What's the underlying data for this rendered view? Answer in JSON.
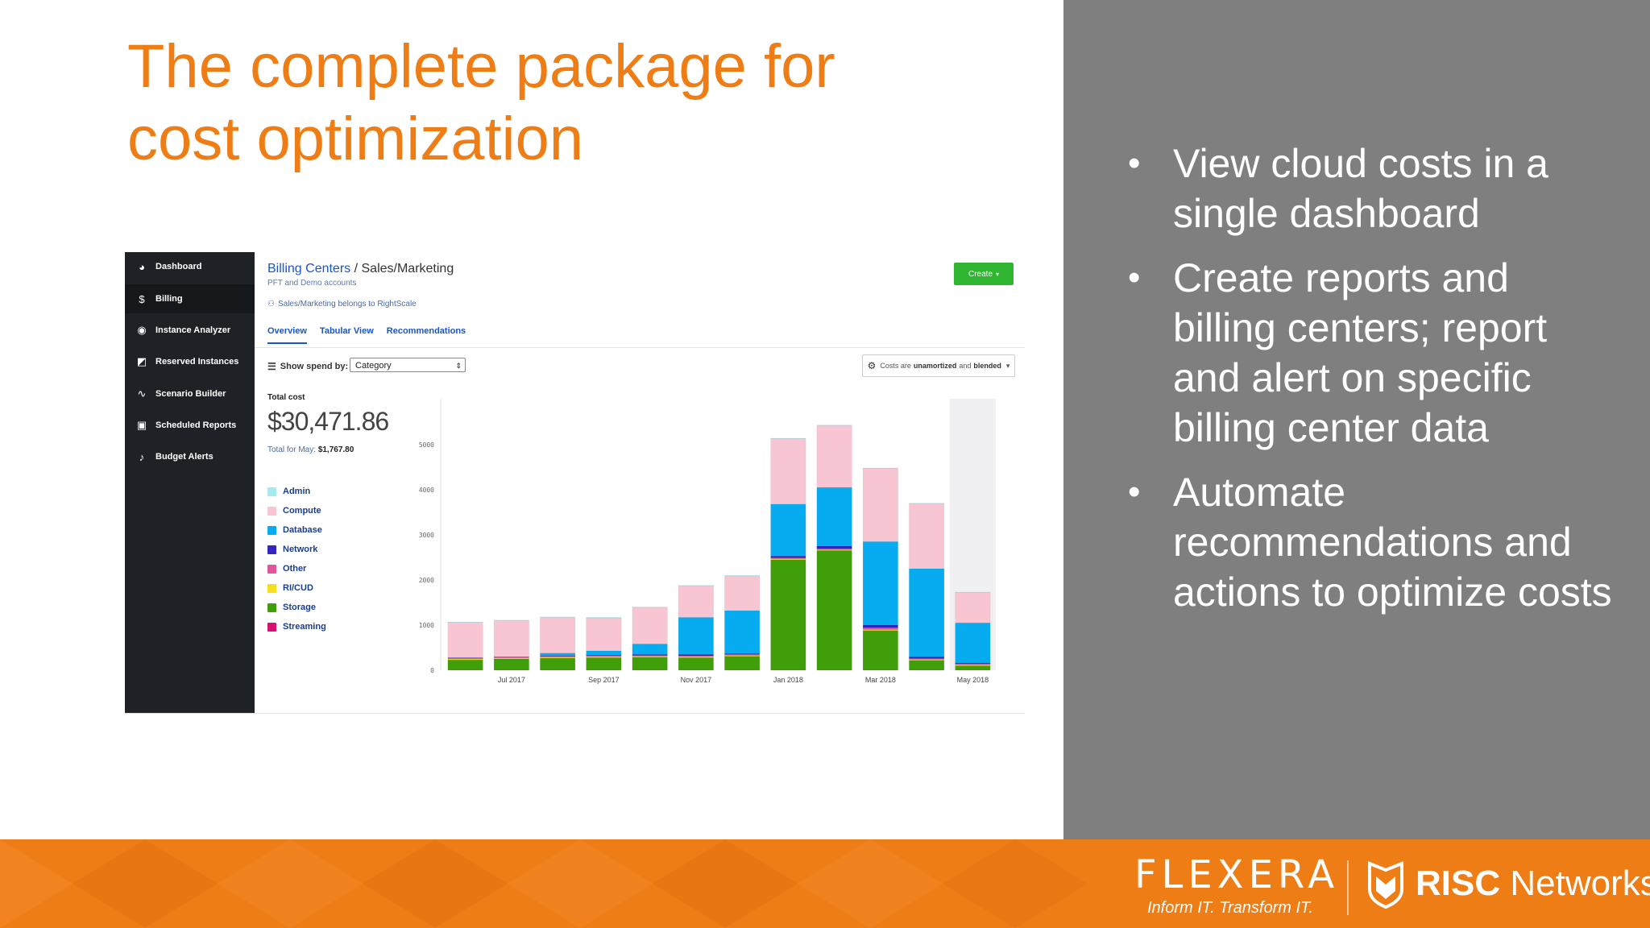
{
  "slide": {
    "title_line1": "The complete package for",
    "title_line2": "cost optimization",
    "bullets": [
      "View cloud costs in a single dashboard",
      "Create reports and billing centers; report and alert on specific billing center data",
      "Automate recommendations and actions to optimize costs"
    ],
    "bullet_glyph": "•",
    "colors": {
      "title": "#ef7d16",
      "right_panel": "#7f7f7f",
      "footer": "#ef7d16"
    }
  },
  "footer": {
    "flexera_logo": "FLEXERA",
    "flexera_tagline": "Inform IT. Transform IT.",
    "risc_bold": "RISC",
    "risc_light": " Networks",
    "risc_tm": "."
  },
  "dashboard": {
    "sidebar": {
      "items": [
        {
          "label": "Dashboard",
          "icon": "gauge-icon",
          "glyph": "◕"
        },
        {
          "label": "Billing",
          "icon": "dollar-icon",
          "glyph": "$"
        },
        {
          "label": "Instance Analyzer",
          "icon": "eye-icon",
          "glyph": "◉"
        },
        {
          "label": "Reserved Instances",
          "icon": "reserved-icon",
          "glyph": "◩"
        },
        {
          "label": "Scenario Builder",
          "icon": "pulse-icon",
          "glyph": "∿"
        },
        {
          "label": "Scheduled Reports",
          "icon": "calendar-icon",
          "glyph": "▣"
        },
        {
          "label": "Budget Alerts",
          "icon": "bell-icon",
          "glyph": "♪"
        }
      ],
      "active_index": 1
    },
    "breadcrumb": {
      "link": "Billing Centers",
      "separator": " / ",
      "current": "Sales/Marketing"
    },
    "subtitle": "PFT and Demo accounts",
    "belongs": "Sales/Marketing belongs to RightScale",
    "create_label": "Create",
    "tabs": [
      "Overview",
      "Tabular View",
      "Recommendations"
    ],
    "active_tab": 0,
    "spend_label": "Show spend by:",
    "spend_select": "Category",
    "costs_prefix": "Costs are",
    "costs_unamortized": "unamortized",
    "costs_and": "and",
    "costs_blended": "blended",
    "total_label": "Total cost",
    "total_value": "$30,471.86",
    "may_label": "Total for May:",
    "may_value": "$1,767.80"
  },
  "chart_data": {
    "type": "bar",
    "stacked": true,
    "categories": [
      "Jun 2017",
      "Jul 2017",
      "Aug 2017",
      "Sep 2017",
      "Oct 2017",
      "Nov 2017",
      "Dec 2017",
      "Jan 2018",
      "Feb 2018",
      "Mar 2018",
      "Apr 2018",
      "May 2018"
    ],
    "x_tick_labels": [
      "",
      "Jul 2017",
      "",
      "Sep 2017",
      "",
      "Nov 2017",
      "",
      "Jan 2018",
      "",
      "Mar 2018",
      "",
      "May 2018"
    ],
    "y_ticks": [
      0,
      1000,
      2000,
      3000,
      4000,
      5000
    ],
    "ylim": [
      0,
      5800
    ],
    "highlight_last": true,
    "legend_position": "left",
    "series": [
      {
        "name": "Storage",
        "color": "#3f9e0a",
        "values": [
          230,
          250,
          270,
          280,
          290,
          280,
          310,
          2450,
          2650,
          880,
          220,
          100
        ]
      },
      {
        "name": "RI/CUD",
        "color": "#f4e01e",
        "values": [
          20,
          20,
          20,
          20,
          20,
          20,
          20,
          20,
          20,
          20,
          20,
          20
        ]
      },
      {
        "name": "Other",
        "color": "#e0559b",
        "values": [
          20,
          20,
          20,
          20,
          20,
          20,
          20,
          20,
          20,
          40,
          20,
          20
        ]
      },
      {
        "name": "Network",
        "color": "#3525c0",
        "values": [
          10,
          10,
          10,
          10,
          20,
          30,
          20,
          40,
          60,
          60,
          40,
          20
        ]
      },
      {
        "name": "Database",
        "color": "#06acef",
        "values": [
          0,
          0,
          60,
          100,
          230,
          820,
          950,
          1150,
          1300,
          1850,
          1950,
          890
        ]
      },
      {
        "name": "Compute",
        "color": "#f8c6d2",
        "values": [
          780,
          800,
          790,
          730,
          810,
          700,
          770,
          1450,
          1370,
          1620,
          1440,
          670
        ]
      },
      {
        "name": "Admin",
        "color": "#a7e9f1",
        "values": [
          10,
          10,
          10,
          10,
          10,
          10,
          10,
          10,
          10,
          10,
          10,
          10
        ]
      }
    ],
    "legend": [
      {
        "name": "Admin",
        "color": "#a7e9f1"
      },
      {
        "name": "Compute",
        "color": "#f8c6d2"
      },
      {
        "name": "Database",
        "color": "#06acef"
      },
      {
        "name": "Network",
        "color": "#3525c0"
      },
      {
        "name": "Other",
        "color": "#e0559b"
      },
      {
        "name": "RI/CUD",
        "color": "#f4e01e"
      },
      {
        "name": "Storage",
        "color": "#3f9e0a"
      },
      {
        "name": "Streaming",
        "color": "#d8106f"
      }
    ]
  }
}
